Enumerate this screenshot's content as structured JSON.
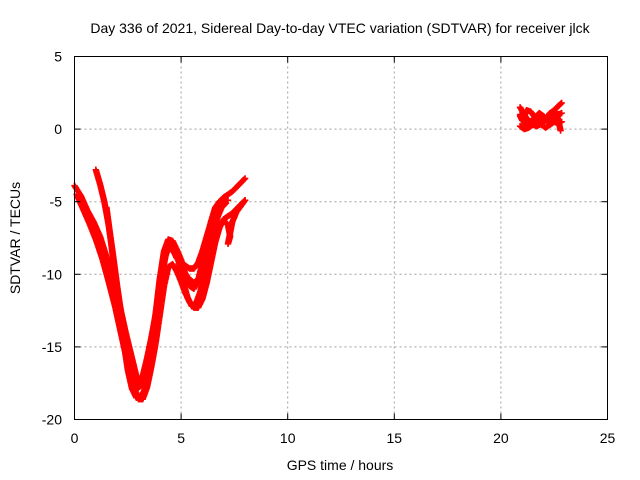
{
  "chart_data": {
    "type": "scatter",
    "title": "Day 336 of 2021, Sidereal Day-to-day VTEC variation (SDTVAR) for receiver jlck",
    "xlabel": "GPS time / hours",
    "ylabel": "SDTVAR / TECUs",
    "xlim": [
      0,
      25
    ],
    "ylim": [
      -20,
      5
    ],
    "xticks": [
      "0",
      "5",
      "10",
      "15",
      "20",
      "25"
    ],
    "yticks": [
      "5",
      "0",
      "-5",
      "-10",
      "-15",
      "-20"
    ],
    "grid": true,
    "marker": "plus",
    "color": "#ff0000",
    "series": [
      {
        "tracks": [
          [
            [
              0.0,
              -3.9
            ],
            [
              0.3,
              -4.6
            ],
            [
              0.6,
              -5.6
            ],
            [
              0.9,
              -6.4
            ],
            [
              1.2,
              -7.4
            ],
            [
              1.5,
              -8.8
            ],
            [
              1.8,
              -10.3
            ],
            [
              2.1,
              -12.0
            ],
            [
              2.4,
              -14.0
            ],
            [
              2.7,
              -15.8
            ],
            [
              2.9,
              -17.0
            ],
            [
              3.05,
              -17.4
            ],
            [
              3.2,
              -17.0
            ],
            [
              3.4,
              -15.8
            ],
            [
              3.6,
              -14.4
            ],
            [
              3.8,
              -12.8
            ],
            [
              4.0,
              -10.8
            ],
            [
              4.2,
              -9.0
            ],
            [
              4.4,
              -8.2
            ],
            [
              4.6,
              -8.3
            ],
            [
              4.8,
              -8.9
            ],
            [
              5.0,
              -9.2
            ],
            [
              5.2,
              -9.4
            ],
            [
              5.4,
              -9.6
            ],
            [
              5.6,
              -9.6
            ],
            [
              5.8,
              -9.2
            ],
            [
              6.0,
              -8.4
            ],
            [
              6.2,
              -7.4
            ],
            [
              6.4,
              -6.4
            ],
            [
              6.6,
              -5.5
            ],
            [
              6.8,
              -5.0
            ],
            [
              7.0,
              -4.7
            ],
            [
              7.2,
              -4.5
            ],
            [
              7.4,
              -4.3
            ],
            [
              7.6,
              -4.0
            ],
            [
              7.8,
              -3.7
            ],
            [
              8.0,
              -3.4
            ]
          ],
          [
            [
              0.1,
              -4.5
            ],
            [
              0.4,
              -5.5
            ],
            [
              0.7,
              -6.5
            ],
            [
              1.0,
              -7.6
            ],
            [
              1.3,
              -8.9
            ],
            [
              1.6,
              -10.5
            ],
            [
              1.9,
              -12.2
            ],
            [
              2.2,
              -14.2
            ],
            [
              2.5,
              -16.2
            ],
            [
              2.8,
              -17.8
            ],
            [
              3.0,
              -18.6
            ],
            [
              3.2,
              -18.6
            ],
            [
              3.4,
              -17.8
            ],
            [
              3.6,
              -16.4
            ],
            [
              3.8,
              -14.8
            ],
            [
              4.0,
              -12.8
            ],
            [
              4.2,
              -10.8
            ],
            [
              4.4,
              -9.5
            ],
            [
              4.6,
              -9.3
            ],
            [
              4.8,
              -9.8
            ],
            [
              5.0,
              -10.5
            ],
            [
              5.2,
              -11.3
            ],
            [
              5.4,
              -11.9
            ],
            [
              5.6,
              -12.3
            ],
            [
              5.8,
              -12.3
            ],
            [
              6.0,
              -11.7
            ],
            [
              6.2,
              -10.6
            ],
            [
              6.4,
              -9.2
            ],
            [
              6.6,
              -7.8
            ],
            [
              6.8,
              -6.8
            ],
            [
              7.0,
              -6.2
            ],
            [
              7.2,
              -6.0
            ],
            [
              7.4,
              -5.8
            ],
            [
              7.6,
              -5.5
            ],
            [
              7.8,
              -5.2
            ],
            [
              8.0,
              -4.9
            ]
          ],
          [
            [
              1.0,
              -2.8
            ],
            [
              1.2,
              -3.8
            ],
            [
              1.4,
              -5.0
            ],
            [
              1.6,
              -6.6
            ],
            [
              1.8,
              -8.6
            ],
            [
              2.0,
              -10.8
            ],
            [
              2.2,
              -12.8
            ],
            [
              2.4,
              -14.8
            ],
            [
              2.6,
              -16.4
            ],
            [
              2.8,
              -17.4
            ],
            [
              3.0,
              -17.8
            ],
            [
              3.2,
              -17.6
            ],
            [
              3.4,
              -16.7
            ],
            [
              3.6,
              -15.0
            ],
            [
              3.8,
              -12.8
            ],
            [
              4.0,
              -10.3
            ],
            [
              4.2,
              -8.4
            ],
            [
              4.4,
              -7.6
            ],
            [
              4.6,
              -7.7
            ],
            [
              4.8,
              -8.3
            ],
            [
              5.0,
              -9.0
            ],
            [
              5.2,
              -10.0
            ],
            [
              5.4,
              -10.8
            ],
            [
              5.6,
              -11.0
            ],
            [
              5.8,
              -10.4
            ],
            [
              6.0,
              -9.2
            ],
            [
              6.2,
              -7.8
            ],
            [
              6.4,
              -6.4
            ],
            [
              6.6,
              -5.4
            ],
            [
              6.8,
              -5.0
            ],
            [
              7.0,
              -4.9
            ],
            [
              7.2,
              -4.9
            ]
          ],
          [
            [
              1.5,
              -5.4
            ],
            [
              1.7,
              -7.6
            ],
            [
              1.9,
              -10.0
            ],
            [
              2.1,
              -12.4
            ],
            [
              2.3,
              -14.6
            ],
            [
              2.5,
              -16.6
            ],
            [
              2.7,
              -17.9
            ],
            [
              2.9,
              -18.5
            ],
            [
              3.1,
              -18.5
            ],
            [
              3.3,
              -17.9
            ],
            [
              3.5,
              -16.7
            ],
            [
              3.7,
              -14.8
            ],
            [
              3.9,
              -12.4
            ],
            [
              4.1,
              -10.1
            ],
            [
              4.3,
              -8.5
            ],
            [
              4.5,
              -8.0
            ],
            [
              4.7,
              -8.3
            ],
            [
              4.9,
              -9.2
            ],
            [
              5.1,
              -10.5
            ],
            [
              5.3,
              -11.6
            ],
            [
              5.5,
              -12.2
            ],
            [
              5.7,
              -12.0
            ],
            [
              5.9,
              -11.2
            ],
            [
              6.1,
              -9.9
            ],
            [
              6.3,
              -8.4
            ],
            [
              6.5,
              -7.1
            ],
            [
              6.7,
              -6.1
            ],
            [
              6.9,
              -5.4
            ],
            [
              7.1,
              -5.1
            ]
          ],
          [
            [
              5.0,
              -9.5
            ],
            [
              5.3,
              -10.2
            ],
            [
              5.6,
              -10.6
            ],
            [
              5.9,
              -10.2
            ],
            [
              6.2,
              -9.0
            ],
            [
              6.5,
              -7.6
            ],
            [
              6.8,
              -6.6
            ],
            [
              7.0,
              -6.3
            ],
            [
              7.2,
              -6.6
            ],
            [
              7.3,
              -7.4
            ],
            [
              7.2,
              -7.9
            ],
            [
              7.4,
              -6.4
            ],
            [
              7.6,
              -5.7
            ],
            [
              7.8,
              -5.3
            ],
            [
              8.0,
              -4.9
            ]
          ],
          [
            [
              20.9,
              1.5
            ],
            [
              21.1,
              1.0
            ],
            [
              21.3,
              0.5
            ],
            [
              21.5,
              0.6
            ],
            [
              21.7,
              0.9
            ],
            [
              21.9,
              0.6
            ],
            [
              22.1,
              0.7
            ],
            [
              22.3,
              1.1
            ],
            [
              22.5,
              1.3
            ],
            [
              22.7,
              1.6
            ],
            [
              22.85,
              1.8
            ]
          ],
          [
            [
              20.9,
              1.0
            ],
            [
              21.1,
              0.4
            ],
            [
              21.3,
              0.2
            ],
            [
              21.5,
              0.3
            ],
            [
              21.7,
              0.2
            ],
            [
              21.9,
              0.4
            ],
            [
              22.1,
              0.6
            ],
            [
              22.3,
              0.8
            ],
            [
              22.5,
              0.9
            ],
            [
              22.7,
              1.0
            ],
            [
              22.85,
              1.1
            ]
          ],
          [
            [
              20.9,
              0.2
            ],
            [
              21.1,
              0.0
            ],
            [
              21.3,
              0.1
            ],
            [
              21.5,
              0.3
            ],
            [
              21.7,
              0.5
            ],
            [
              21.9,
              0.3
            ],
            [
              22.1,
              0.1
            ],
            [
              22.3,
              0.3
            ],
            [
              22.5,
              0.5
            ],
            [
              22.7,
              0.4
            ],
            [
              22.85,
              0.5
            ]
          ],
          [
            [
              20.9,
              0.9
            ],
            [
              21.0,
              0.6
            ],
            [
              21.2,
              1.3
            ],
            [
              21.4,
              1.2
            ],
            [
              21.6,
              0.8
            ],
            [
              21.8,
              1.1
            ],
            [
              22.0,
              0.9
            ],
            [
              22.2,
              0.5
            ],
            [
              22.4,
              0.8
            ],
            [
              22.6,
              1.2
            ],
            [
              22.8,
              -0.1
            ]
          ]
        ]
      }
    ]
  }
}
